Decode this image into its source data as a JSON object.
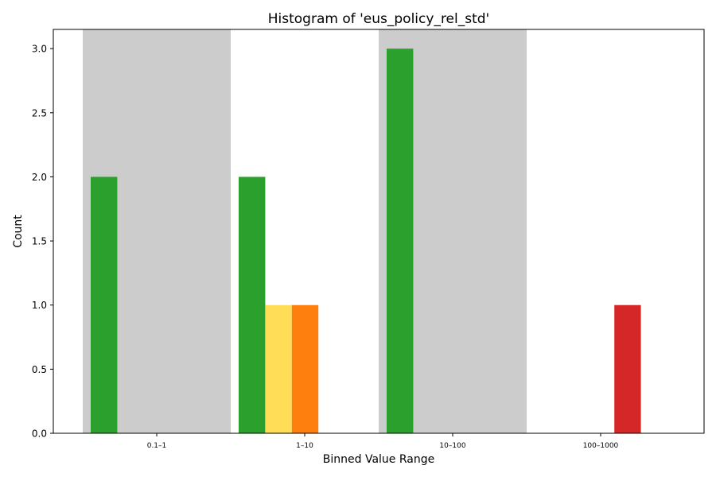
{
  "chart_data": {
    "type": "bar",
    "title": "Histogram of 'eus_policy_rel_std'",
    "xlabel": "Binned Value Range",
    "ylabel": "Count",
    "categories": [
      "0.1–1",
      "1–10",
      "10–100",
      "100–1000"
    ],
    "ylim": [
      0,
      3.15
    ],
    "yticks": [
      "0.0",
      "0.5",
      "1.0",
      "1.5",
      "2.0",
      "2.5",
      "3.0"
    ],
    "shaded_bins": [
      0,
      2
    ],
    "shade_color": "#cccccc",
    "series": [
      {
        "color": "#2ca02c",
        "values": [
          2,
          2,
          3,
          0
        ]
      },
      {
        "color": "#ffdd57",
        "values": [
          0,
          1,
          0,
          0
        ]
      },
      {
        "color": "#ff7f0e",
        "values": [
          0,
          1,
          0,
          0
        ]
      },
      {
        "color": "#d62728",
        "values": [
          0,
          0,
          0,
          1
        ]
      }
    ],
    "grid": false,
    "legend": "none"
  }
}
